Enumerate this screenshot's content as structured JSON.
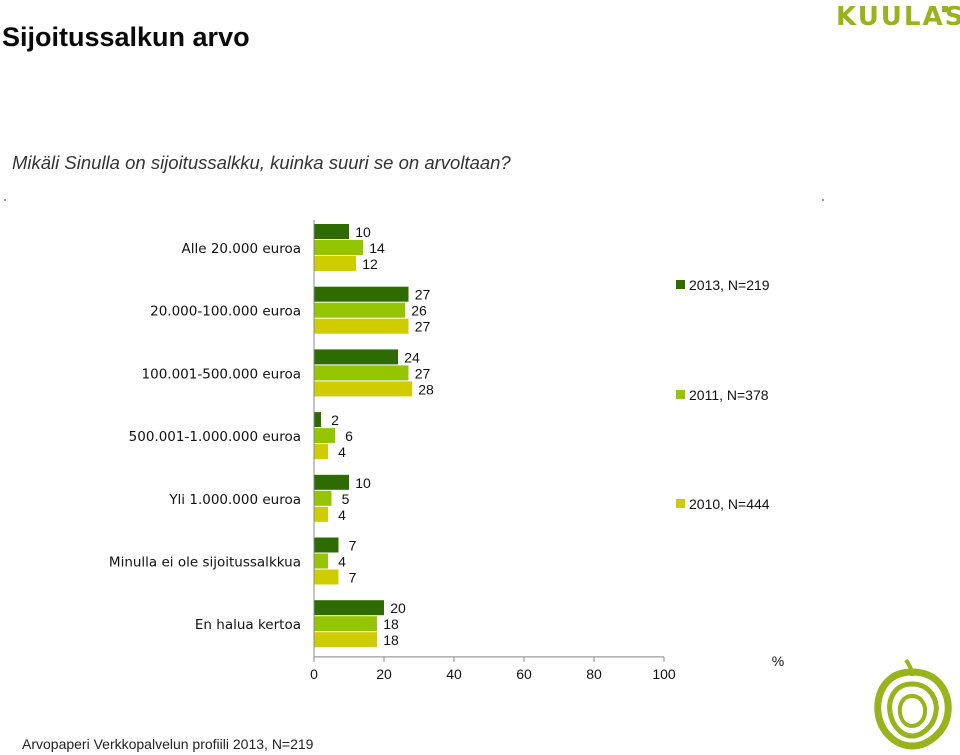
{
  "header": {
    "title": "Sijoitussalkun arvo",
    "logo_text": "KUULAS"
  },
  "question": "Mikäli Sinulla on sijoitussalkku, kuinka suuri se on arvoltaan?",
  "footer": "Arvopaperi Verkkopalvelun profiili 2013, N=219",
  "colors": {
    "series_2013": "#2e6b00",
    "series_2011": "#95c500",
    "series_2010": "#cfcc00",
    "logo": "#98b31c"
  },
  "chart_data": {
    "type": "bar",
    "orientation": "horizontal",
    "categories": [
      "Alle 20.000 euroa",
      "20.000-100.000 euroa",
      "100.001-500.000 euroa",
      "500.001-1.000.000 euroa",
      "Yli 1.000.000 euroa",
      "Minulla ei ole sijoitussalkkua",
      "En halua kertoa"
    ],
    "series": [
      {
        "name": "2013, N=219",
        "values": [
          10,
          27,
          24,
          2,
          10,
          7,
          20
        ]
      },
      {
        "name": "2011, N=378",
        "values": [
          14,
          26,
          27,
          6,
          5,
          4,
          18
        ]
      },
      {
        "name": "2010, N=444",
        "values": [
          12,
          27,
          28,
          4,
          4,
          7,
          18
        ]
      }
    ],
    "xlim": [
      0,
      100
    ],
    "xticks": [
      0,
      20,
      40,
      60,
      80,
      100
    ],
    "tick_labels": [
      "0",
      "20",
      "40",
      "60",
      "80",
      "100"
    ],
    "unit_label": "%",
    "legend_position": "right",
    "grid": false
  }
}
